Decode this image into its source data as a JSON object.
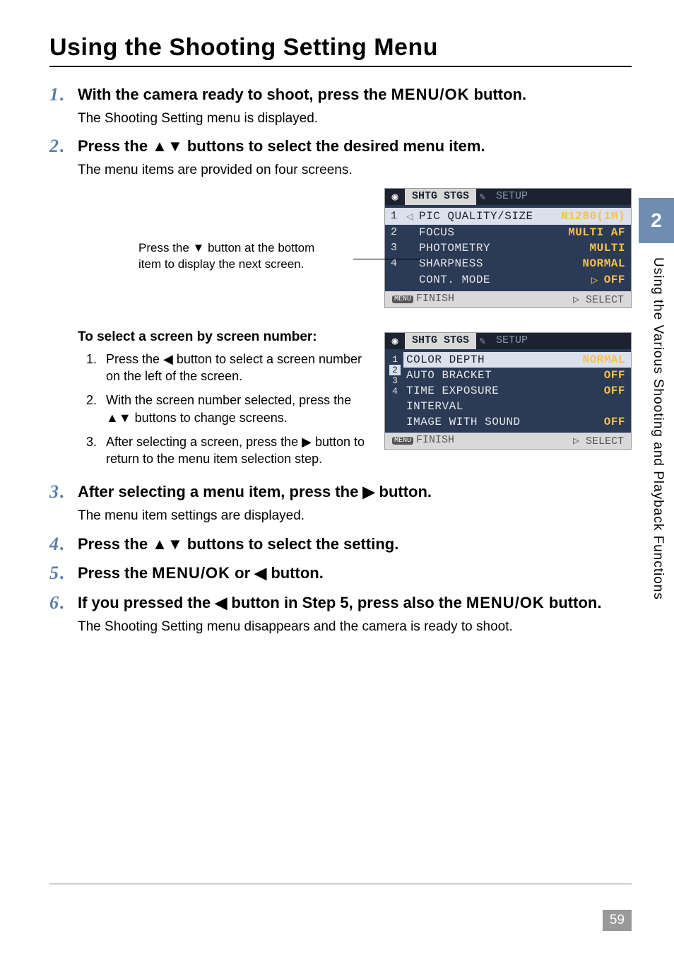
{
  "heading": "Using the Shooting Setting Menu",
  "steps": {
    "s1": {
      "num": "1",
      "title_a": "With the camera ready to shoot, press the ",
      "title_b": " button.",
      "menuok": "MENU/OK",
      "sub": "The Shooting Setting menu is displayed."
    },
    "s2": {
      "num": "2",
      "title_a": "Press the ",
      "title_sym": "▲▼",
      "title_b": " buttons to select the desired menu item.",
      "sub": "The menu items are provided on four screens."
    },
    "note_a": "Press the ▼ button at the bottom",
    "note_b": "item to display the next screen.",
    "subhead": "To select a screen by screen number:",
    "sub1": {
      "n": "1.",
      "t_a": "Press the ",
      "sym": "◀",
      "t_b": " button to select a screen number on the left of the screen."
    },
    "sub2": {
      "n": "2.",
      "t_a": "With the screen number selected, press the ",
      "sym": "▲▼",
      "t_b": " buttons to change screens."
    },
    "sub3": {
      "n": "3.",
      "t_a": "After selecting a screen, press the ",
      "sym": "▶",
      "t_b": " button to return to the menu item selection step."
    },
    "s3": {
      "num": "3",
      "title_a": "After selecting a menu item, press the ",
      "title_sym": "▶",
      "title_b": " button.",
      "sub": "The menu item settings are displayed."
    },
    "s4": {
      "num": "4",
      "title_a": "Press the ",
      "title_sym": "▲▼",
      "title_b": " buttons to select the setting."
    },
    "s5": {
      "num": "5",
      "title_a": "Press the ",
      "menuok": "MENU/OK",
      "title_b": " or ",
      "title_sym": "◀",
      "title_c": " button."
    },
    "s6": {
      "num": "6",
      "title_a": "If you pressed the ",
      "title_sym": "◀",
      "title_b": " button in Step 5, press also the ",
      "menuok": "MENU/OK",
      "title_c": " button.",
      "sub": "The Shooting Setting menu disappears and the camera is ready to shoot."
    }
  },
  "lcd1": {
    "tab_active": "SHTG STGS",
    "tab_inactive": "SETUP",
    "rows": [
      {
        "idx": "1",
        "label": "PIC QUALITY/SIZE",
        "val": "N1280(1M)",
        "selected": true,
        "lptr": "◁",
        "rptr": ""
      },
      {
        "idx": "2",
        "label": "FOCUS",
        "val": "MULTI AF"
      },
      {
        "idx": "3",
        "label": "PHOTOMETRY",
        "val": "MULTI"
      },
      {
        "idx": "4",
        "label": "SHARPNESS",
        "val": "NORMAL"
      },
      {
        "idx": "",
        "label": "CONT. MODE",
        "val": "OFF",
        "rptr": "▷"
      }
    ],
    "footer_left": "FINISH",
    "footer_right": "▷ SELECT",
    "menu_badge": "MENU"
  },
  "lcd2": {
    "tab_active": "SHTG STGS",
    "tab_inactive": "SETUP",
    "strip": [
      "1",
      "2",
      "3",
      "4"
    ],
    "strip_bracketed": "2",
    "rows": [
      {
        "label": "COLOR DEPTH",
        "val": "NORMAL",
        "selected": true
      },
      {
        "label": "AUTO BRACKET",
        "val": "OFF"
      },
      {
        "label": "TIME EXPOSURE",
        "val": "OFF"
      },
      {
        "label": "INTERVAL",
        "val": ""
      },
      {
        "label": "IMAGE WITH SOUND",
        "val": "OFF"
      }
    ],
    "footer_left": "FINISH",
    "footer_right": "▷ SELECT",
    "menu_badge": "MENU"
  },
  "side": {
    "num": "2",
    "text": "Using the Various Shooting and Playback Functions"
  },
  "page_number": "59",
  "colors": {
    "step_num": "#5a7fa8",
    "side_bg": "#6f8db0",
    "lcd_bg": "#2b3a55",
    "lcd_val": "#f6c14b",
    "lcd_sel_bg": "#dae0ec",
    "footer_gray": "#999999"
  }
}
